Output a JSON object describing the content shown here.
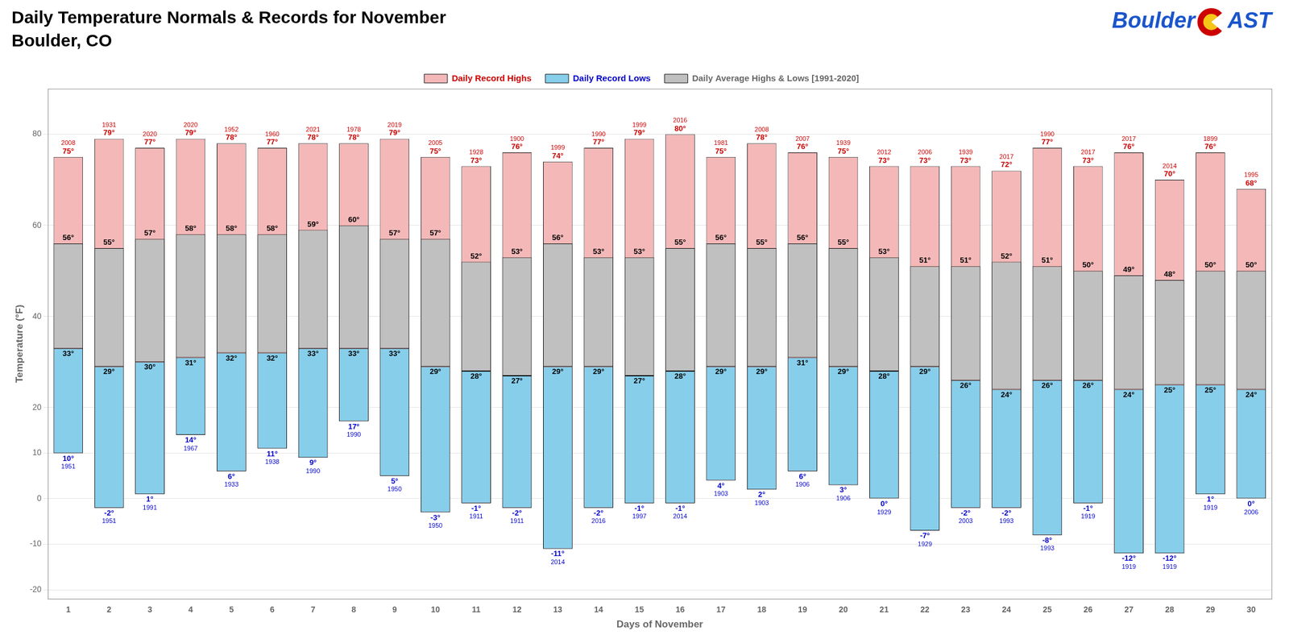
{
  "chart_data": {
    "type": "bar",
    "title": "Daily Temperature Normals & Records for November",
    "subtitle": "Boulder, CO",
    "xlabel": "Days of November",
    "ylabel": "Temperature (°F)",
    "annotations": [
      "Boulder",
      "AST"
    ],
    "categories": [
      "1",
      "2",
      "3",
      "4",
      "5",
      "6",
      "7",
      "8",
      "9",
      "10",
      "11",
      "12",
      "13",
      "14",
      "15",
      "16",
      "17",
      "18",
      "19",
      "20",
      "21",
      "22",
      "23",
      "24",
      "25",
      "26",
      "27",
      "28",
      "29",
      "30"
    ],
    "series": [
      {
        "name": "Daily Record Highs",
        "color": "#f4b8b8",
        "values": [
          75,
          79,
          77,
          79,
          78,
          77,
          78,
          78,
          79,
          75,
          73,
          76,
          74,
          77,
          79,
          80,
          75,
          78,
          76,
          75,
          73,
          73,
          73,
          72,
          77,
          73,
          76,
          70,
          76,
          68
        ],
        "value_labels": [
          "75°",
          "79°",
          "77°",
          "79°",
          "78°",
          "77°",
          "78°",
          "78°",
          "79°",
          "75°",
          "73°",
          "76°",
          "74°",
          "77°",
          "79°",
          "80°",
          "75°",
          "78°",
          "76°",
          "75°",
          "73°",
          "73°",
          "73°",
          "72°",
          "77°",
          "73°",
          "76°",
          "70°",
          "76°",
          "68°"
        ],
        "years": [
          "2008",
          "1931",
          "2020",
          "2020",
          "1952",
          "1960",
          "2021",
          "1978",
          "2019",
          "2005",
          "1928",
          "1900",
          "1999",
          "1990",
          "1999",
          "2016",
          "1981",
          "2008",
          "2007",
          "1939",
          "2012",
          "2006",
          "1939",
          "2017",
          "1990",
          "2017",
          "2017",
          "2014",
          "1899",
          "1995"
        ]
      },
      {
        "name": "Daily Record Lows",
        "color": "#87ceeb",
        "values": [
          10,
          -2,
          1,
          14,
          6,
          11,
          9,
          17,
          5,
          -3,
          -1,
          -2,
          -11,
          -2,
          -1,
          -1,
          4,
          2,
          6,
          3,
          0,
          -7,
          -2,
          -2,
          -8,
          -1,
          -12,
          -12,
          1,
          0
        ],
        "value_labels": [
          "10°",
          "-2°",
          "1°",
          "14°",
          "6°",
          "11°",
          "9°",
          "17°",
          "5°",
          "-3°",
          "-1°",
          "-2°",
          "-11°",
          "-2°",
          "-1°",
          "-1°",
          "4°",
          "2°",
          "6°",
          "3°",
          "0°",
          "-7°",
          "-2°",
          "-2°",
          "-8°",
          "-1°",
          "-12°",
          "-12°",
          "1°",
          "0°"
        ],
        "years": [
          "1951",
          "1951",
          "1991",
          "1967",
          "1933",
          "1938",
          "1990",
          "1990",
          "1950",
          "1950",
          "1911",
          "1911",
          "2014",
          "2016",
          "1997",
          "2014",
          "1903",
          "1903",
          "1906",
          "1906",
          "1929",
          "1929",
          "2003",
          "1993",
          "1993",
          "1919",
          "1919",
          "1919",
          "1919",
          "2006"
        ]
      },
      {
        "name": "Daily Average Highs & Lows [1991-2020]",
        "color": "#c0c0c0",
        "values": [
          [
            33,
            56
          ],
          [
            29,
            55
          ],
          [
            30,
            57
          ],
          [
            31,
            58
          ],
          [
            32,
            58
          ],
          [
            32,
            58
          ],
          [
            33,
            59
          ],
          [
            33,
            60
          ],
          [
            33,
            57
          ],
          [
            29,
            57
          ],
          [
            28,
            52
          ],
          [
            27,
            53
          ],
          [
            29,
            56
          ],
          [
            29,
            53
          ],
          [
            27,
            53
          ],
          [
            28,
            55
          ],
          [
            29,
            56
          ],
          [
            29,
            55
          ],
          [
            31,
            56
          ],
          [
            29,
            55
          ],
          [
            28,
            53
          ],
          [
            29,
            51
          ],
          [
            26,
            51
          ],
          [
            24,
            52
          ],
          [
            26,
            51
          ],
          [
            26,
            50
          ],
          [
            24,
            49
          ],
          [
            25,
            48
          ],
          [
            25,
            50
          ],
          [
            24,
            50
          ]
        ],
        "value_labels": [
          [
            "33°",
            "56°"
          ],
          [
            "29°",
            "55°"
          ],
          [
            "30°",
            "57°"
          ],
          [
            "31°",
            "58°"
          ],
          [
            "32°",
            "58°"
          ],
          [
            "32°",
            "58°"
          ],
          [
            "33°",
            "59°"
          ],
          [
            "33°",
            "60°"
          ],
          [
            "33°",
            "57°"
          ],
          [
            "29°",
            "57°"
          ],
          [
            "28°",
            "52°"
          ],
          [
            "27°",
            "53°"
          ],
          [
            "29°",
            "56°"
          ],
          [
            "29°",
            "53°"
          ],
          [
            "27°",
            "53°"
          ],
          [
            "28°",
            "55°"
          ],
          [
            "29°",
            "56°"
          ],
          [
            "29°",
            "55°"
          ],
          [
            "31°",
            "56°"
          ],
          [
            "29°",
            "55°"
          ],
          [
            "28°",
            "53°"
          ],
          [
            "29°",
            "51°"
          ],
          [
            "26°",
            "51°"
          ],
          [
            "24°",
            "52°"
          ],
          [
            "26°",
            "51°"
          ],
          [
            "26°",
            "50°"
          ],
          [
            "24°",
            "49°"
          ],
          [
            "25°",
            "48°"
          ],
          [
            "25°",
            "50°"
          ],
          [
            "24°",
            "50°"
          ]
        ]
      }
    ],
    "ylim": [
      -22,
      90
    ],
    "yticks": [
      -20,
      -10,
      0,
      10,
      20,
      40,
      60,
      80
    ],
    "grid": true,
    "legend": "top",
    "data_labels": true
  }
}
